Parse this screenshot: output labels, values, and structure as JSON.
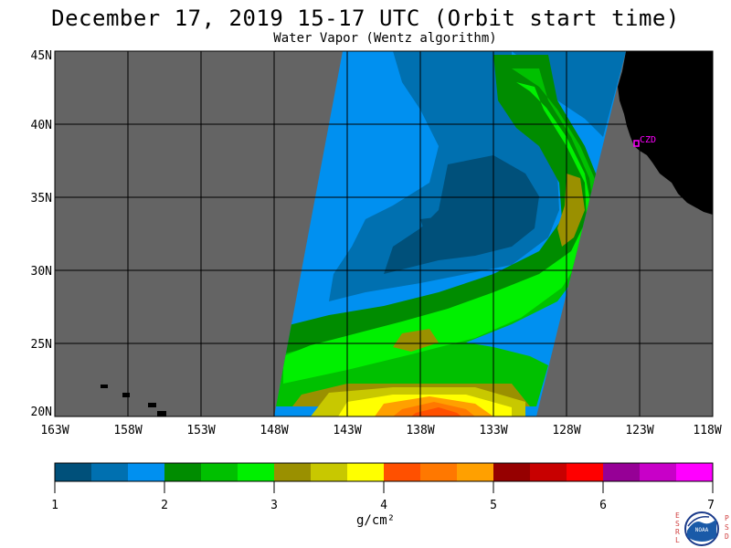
{
  "title": "December 17, 2019  15-17 UTC  (Orbit start time)",
  "subtitle": "Water Vapor (Wentz algorithm)",
  "lat_labels": [
    "45N",
    "40N",
    "35N",
    "30N",
    "25N",
    "20N"
  ],
  "lon_labels": [
    "163W",
    "158W",
    "153W",
    "148W",
    "143W",
    "138W",
    "133W",
    "128W",
    "123W",
    "118W"
  ],
  "station": {
    "label": "CZD",
    "color": "#ff00ff"
  },
  "colorbar": {
    "colors": [
      "#00507a",
      "#0070b0",
      "#0090f0",
      "#008c00",
      "#00c000",
      "#00f000",
      "#9a9000",
      "#c8c800",
      "#ffff00",
      "#ff5000",
      "#ff7800",
      "#ffa000",
      "#960000",
      "#c80000",
      "#ff0000",
      "#960096",
      "#c800c8",
      "#ff00ff"
    ],
    "tick_labels": [
      "1",
      "2",
      "3",
      "4",
      "5",
      "6",
      "7"
    ],
    "unit": "g/cm²"
  },
  "logo": {
    "left_letters": [
      "E",
      "S",
      "R",
      "L"
    ],
    "right_letters": [
      "P",
      "S",
      "D"
    ],
    "center": "NOAA"
  },
  "colors": {
    "background_missing": "#646464",
    "land": "#000000",
    "grid": "#000000"
  }
}
